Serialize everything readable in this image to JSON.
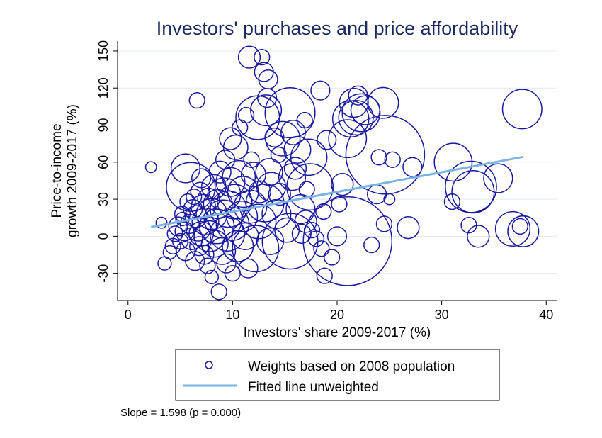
{
  "chart_data": {
    "type": "scatter",
    "title": "Investors' purchases and price affordability",
    "xlabel": "Investors' share 2009-2017 (%)",
    "ylabel_lines": [
      "Price-to-income",
      "growth 2009-2017 (%)"
    ],
    "xlim": [
      -1,
      41
    ],
    "ylim": [
      -52,
      158
    ],
    "xticks": [
      0,
      10,
      20,
      30,
      40
    ],
    "yticks": [
      -30,
      0,
      30,
      60,
      90,
      120,
      150
    ],
    "grid": "horizontal",
    "legend": {
      "position": "bottom",
      "entries": [
        {
          "label": "Weights based on 2008 population",
          "marker": "circle"
        },
        {
          "label": "Fitted line unweighted",
          "marker": "line"
        }
      ]
    },
    "note": "Slope = 1.598 (p = 0.000)",
    "fitted_line": {
      "x": [
        2.2,
        37.8
      ],
      "y": [
        7.5,
        64.3
      ]
    },
    "colors": {
      "bubble": "#1a1aa0",
      "fit": "#7ab3e6",
      "title": "#1a2a5e",
      "grid": "#e3eaf0"
    },
    "points": [
      {
        "x": 2.2,
        "y": 56,
        "w": 1
      },
      {
        "x": 3.2,
        "y": 11,
        "w": 1
      },
      {
        "x": 3.5,
        "y": -22,
        "w": 1.5
      },
      {
        "x": 4.0,
        "y": -13,
        "w": 1.5
      },
      {
        "x": 4.3,
        "y": -8,
        "w": 2
      },
      {
        "x": 4.5,
        "y": 2,
        "w": 2
      },
      {
        "x": 4.8,
        "y": 8,
        "w": 3
      },
      {
        "x": 5.0,
        "y": -4,
        "w": 2
      },
      {
        "x": 5.2,
        "y": 18,
        "w": 2
      },
      {
        "x": 5.2,
        "y": 14,
        "w": 1.5
      },
      {
        "x": 5.4,
        "y": 4,
        "w": 3
      },
      {
        "x": 5.5,
        "y": 55,
        "w": 7
      },
      {
        "x": 5.5,
        "y": -12,
        "w": 3
      },
      {
        "x": 5.7,
        "y": 28,
        "w": 2
      },
      {
        "x": 5.9,
        "y": 10,
        "w": 3
      },
      {
        "x": 6.0,
        "y": 40,
        "w": 20
      },
      {
        "x": 6.1,
        "y": -2,
        "w": 4
      },
      {
        "x": 6.2,
        "y": 22,
        "w": 3
      },
      {
        "x": 6.3,
        "y": 32,
        "w": 2
      },
      {
        "x": 6.4,
        "y": -20,
        "w": 3
      },
      {
        "x": 6.5,
        "y": 16,
        "w": 4
      },
      {
        "x": 6.6,
        "y": 110,
        "w": 2
      },
      {
        "x": 6.7,
        "y": 6,
        "w": 5
      },
      {
        "x": 6.8,
        "y": -8,
        "w": 3
      },
      {
        "x": 6.9,
        "y": 36,
        "w": 3
      },
      {
        "x": 7.0,
        "y": 2,
        "w": 5
      },
      {
        "x": 7.0,
        "y": 47,
        "w": 3
      },
      {
        "x": 7.2,
        "y": 24,
        "w": 5
      },
      {
        "x": 7.3,
        "y": -15,
        "w": 3
      },
      {
        "x": 7.4,
        "y": 12,
        "w": 6
      },
      {
        "x": 7.6,
        "y": -24,
        "w": 2
      },
      {
        "x": 7.7,
        "y": 30,
        "w": 4
      },
      {
        "x": 7.8,
        "y": 0,
        "w": 8
      },
      {
        "x": 8.0,
        "y": -33,
        "w": 1.5
      },
      {
        "x": 8.0,
        "y": 18,
        "w": 8
      },
      {
        "x": 8.2,
        "y": 40,
        "w": 5
      },
      {
        "x": 8.3,
        "y": -6,
        "w": 6
      },
      {
        "x": 8.5,
        "y": 8,
        "w": 10
      },
      {
        "x": 8.6,
        "y": 26,
        "w": 7
      },
      {
        "x": 8.7,
        "y": -45,
        "w": 2
      },
      {
        "x": 8.8,
        "y": 52,
        "w": 4
      },
      {
        "x": 9.0,
        "y": -12,
        "w": 6
      },
      {
        "x": 9.1,
        "y": 14,
        "w": 12
      },
      {
        "x": 9.2,
        "y": 34,
        "w": 9
      },
      {
        "x": 9.3,
        "y": 62,
        "w": 3
      },
      {
        "x": 9.4,
        "y": -22,
        "w": 3
      },
      {
        "x": 9.5,
        "y": 2,
        "w": 10
      },
      {
        "x": 9.6,
        "y": 22,
        "w": 11
      },
      {
        "x": 9.8,
        "y": 44,
        "w": 7
      },
      {
        "x": 9.8,
        "y": 79,
        "w": 4
      },
      {
        "x": 10.0,
        "y": -30,
        "w": 2
      },
      {
        "x": 10.0,
        "y": 10,
        "w": 9
      },
      {
        "x": 10.2,
        "y": 28,
        "w": 10
      },
      {
        "x": 10.3,
        "y": 72,
        "w": 5
      },
      {
        "x": 10.5,
        "y": -8,
        "w": 8
      },
      {
        "x": 10.6,
        "y": 48,
        "w": 9
      },
      {
        "x": 10.7,
        "y": 88,
        "w": 2
      },
      {
        "x": 10.9,
        "y": 16,
        "w": 8
      },
      {
        "x": 11.0,
        "y": 36,
        "w": 8
      },
      {
        "x": 11.2,
        "y": 0,
        "w": 6
      },
      {
        "x": 11.3,
        "y": 98,
        "w": 2
      },
      {
        "x": 11.5,
        "y": -26,
        "w": 3
      },
      {
        "x": 11.6,
        "y": 145,
        "w": 4
      },
      {
        "x": 11.7,
        "y": 24,
        "w": 9
      },
      {
        "x": 11.8,
        "y": 62,
        "w": 2
      },
      {
        "x": 12.0,
        "y": 50,
        "w": 5
      },
      {
        "x": 12.2,
        "y": -10,
        "w": 18
      },
      {
        "x": 12.4,
        "y": 96,
        "w": 16
      },
      {
        "x": 12.5,
        "y": 12,
        "w": 10
      },
      {
        "x": 12.6,
        "y": 36,
        "w": 4
      },
      {
        "x": 12.8,
        "y": 145,
        "w": 2
      },
      {
        "x": 13.0,
        "y": 133,
        "w": 3
      },
      {
        "x": 13.1,
        "y": 27,
        "w": 12
      },
      {
        "x": 13.2,
        "y": 102,
        "w": 8
      },
      {
        "x": 13.3,
        "y": 112,
        "w": 3
      },
      {
        "x": 13.4,
        "y": 127,
        "w": 3
      },
      {
        "x": 13.5,
        "y": 52,
        "w": 6
      },
      {
        "x": 13.6,
        "y": -4,
        "w": 6
      },
      {
        "x": 13.7,
        "y": 40,
        "w": 7
      },
      {
        "x": 14.0,
        "y": 80,
        "w": 3
      },
      {
        "x": 14.2,
        "y": 18,
        "w": 7
      },
      {
        "x": 14.4,
        "y": 66,
        "w": 2
      },
      {
        "x": 14.5,
        "y": 34,
        "w": 4
      },
      {
        "x": 14.8,
        "y": 79,
        "w": 10
      },
      {
        "x": 15.2,
        "y": 5,
        "w": 5
      },
      {
        "x": 15.5,
        "y": 100,
        "w": 21
      },
      {
        "x": 15.5,
        "y": -4,
        "w": 26
      },
      {
        "x": 15.7,
        "y": 48,
        "w": 6
      },
      {
        "x": 15.8,
        "y": 84,
        "w": 5
      },
      {
        "x": 16.0,
        "y": 55,
        "w": 4
      },
      {
        "x": 16.2,
        "y": 70,
        "w": 6
      },
      {
        "x": 16.5,
        "y": 22,
        "w": 7
      },
      {
        "x": 16.6,
        "y": 2,
        "w": 3
      },
      {
        "x": 16.9,
        "y": 94,
        "w": 2
      },
      {
        "x": 17.0,
        "y": 12,
        "w": 4
      },
      {
        "x": 17.1,
        "y": 38,
        "w": 2
      },
      {
        "x": 17.3,
        "y": 64,
        "w": 11
      },
      {
        "x": 17.4,
        "y": 40,
        "w": 18
      },
      {
        "x": 17.6,
        "y": 5,
        "w": 2
      },
      {
        "x": 18.0,
        "y": -2,
        "w": 2
      },
      {
        "x": 18.4,
        "y": 118,
        "w": 3
      },
      {
        "x": 18.5,
        "y": -10,
        "w": 2
      },
      {
        "x": 18.7,
        "y": 20,
        "w": 2
      },
      {
        "x": 18.8,
        "y": -32,
        "w": 2
      },
      {
        "x": 19.0,
        "y": 78,
        "w": 3
      },
      {
        "x": 19.5,
        "y": -17,
        "w": 2
      },
      {
        "x": 20.0,
        "y": 0,
        "w": 3
      },
      {
        "x": 20.2,
        "y": 26,
        "w": 2
      },
      {
        "x": 20.5,
        "y": 42,
        "w": 4
      },
      {
        "x": 21.0,
        "y": -4,
        "w": 66
      },
      {
        "x": 21.0,
        "y": 79,
        "w": 12
      },
      {
        "x": 21.3,
        "y": 95,
        "w": 11
      },
      {
        "x": 21.6,
        "y": 108,
        "w": 7
      },
      {
        "x": 21.8,
        "y": 96,
        "w": 10
      },
      {
        "x": 22.0,
        "y": 114,
        "w": 3
      },
      {
        "x": 22.3,
        "y": 100,
        "w": 12
      },
      {
        "x": 22.7,
        "y": 102,
        "w": 7
      },
      {
        "x": 23.3,
        "y": -7,
        "w": 2
      },
      {
        "x": 23.8,
        "y": 34,
        "w": 3
      },
      {
        "x": 24.0,
        "y": 64,
        "w": 2
      },
      {
        "x": 24.4,
        "y": 108,
        "w": 8
      },
      {
        "x": 24.5,
        "y": 10,
        "w": 2
      },
      {
        "x": 24.6,
        "y": 66,
        "w": 52
      },
      {
        "x": 25.0,
        "y": 30,
        "w": 1
      },
      {
        "x": 25.3,
        "y": 62,
        "w": 2
      },
      {
        "x": 26.8,
        "y": 7,
        "w": 4
      },
      {
        "x": 27.2,
        "y": 56,
        "w": 3
      },
      {
        "x": 31.0,
        "y": 28,
        "w": 2
      },
      {
        "x": 31.1,
        "y": 60,
        "w": 12
      },
      {
        "x": 32.6,
        "y": 9,
        "w": 2
      },
      {
        "x": 32.8,
        "y": 40,
        "w": 22
      },
      {
        "x": 33.0,
        "y": 36,
        "w": 15
      },
      {
        "x": 33.5,
        "y": 0,
        "w": 4
      },
      {
        "x": 35.4,
        "y": 47,
        "w": 7
      },
      {
        "x": 36.8,
        "y": 6,
        "w": 10
      },
      {
        "x": 37.5,
        "y": 8,
        "w": 2
      },
      {
        "x": 37.8,
        "y": 4,
        "w": 8
      },
      {
        "x": 37.7,
        "y": 103,
        "w": 13
      }
    ]
  }
}
